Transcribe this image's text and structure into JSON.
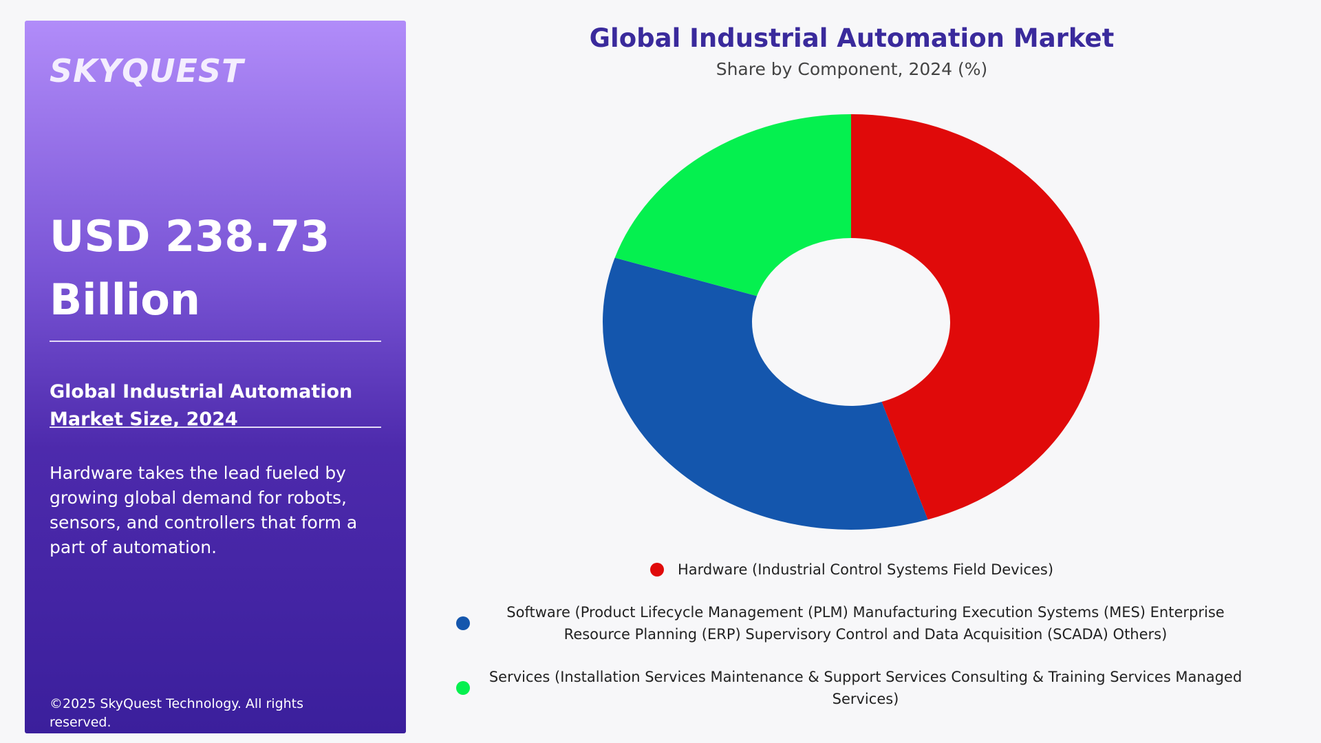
{
  "panel": {
    "logo": "SKYQUEST",
    "headline": "USD 238.73 Billion",
    "subheading": "Global Industrial Automation Market Size, 2024",
    "description": "Hardware takes the lead fueled by growing global demand for robots, sensors, and controllers that form a part of automation.",
    "copyright": "©2025 SkyQuest Technology. All rights reserved."
  },
  "chart_data": {
    "type": "donut",
    "title": "Global Industrial Automation Market",
    "subtitle": "Share by Component, 2024 (%)",
    "categories": [
      "Hardware (Industrial Control Systems Field Devices)",
      "Software (Product Lifecycle Management (PLM) Manufacturing Execution Systems (MES) Enterprise Resource Planning (ERP) Supervisory Control and Data Acquisition (SCADA) Others)",
      "Services (Installation Services Maintenance & Support Services Consulting & Training Services Managed Services)"
    ],
    "values": [
      45,
      35,
      20
    ],
    "colors": [
      "#e00a0a",
      "#1456ad",
      "#05f04f"
    ]
  }
}
